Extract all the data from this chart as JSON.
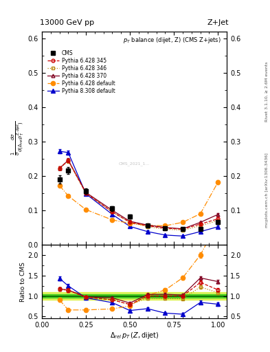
{
  "title_top": "13000 GeV pp",
  "title_right": "Z+Jet",
  "subtitle": "$p_T$ balance (dijet, Z) (CMS Z+jets)",
  "ylabel_main": "$\\frac{1}{\\sigma}\\frac{d\\sigma}{d(\\Delta_{rel}\\,p_T^{Z,dijet})}$",
  "ylabel_ratio": "Ratio to CMS",
  "xlabel": "$\\Delta_{rel}\\,p_T\\,(Z,\\mathrm{dijet})$",
  "right_label_top": "Rivet 3.1.10, ≥ 2.6M events",
  "right_label_bot": "mcplots.cern.ch [arXiv:1306.3436]",
  "cms_x": [
    0.1,
    0.15,
    0.25,
    0.4,
    0.5,
    0.6,
    0.7,
    0.8,
    0.9,
    1.0
  ],
  "cms_y": [
    0.19,
    0.215,
    0.155,
    0.105,
    0.082,
    0.055,
    0.048,
    0.045,
    0.045,
    0.065
  ],
  "cms_yerr": [
    0.012,
    0.01,
    0.008,
    0.007,
    0.006,
    0.004,
    0.004,
    0.003,
    0.003,
    0.005
  ],
  "p345_x": [
    0.1,
    0.15,
    0.25,
    0.4,
    0.5,
    0.6,
    0.7,
    0.8,
    0.9,
    1.0
  ],
  "p345_y": [
    0.222,
    0.245,
    0.15,
    0.095,
    0.065,
    0.055,
    0.048,
    0.045,
    0.06,
    0.075
  ],
  "p345_yerr": [
    0.005,
    0.005,
    0.004,
    0.003,
    0.003,
    0.003,
    0.002,
    0.002,
    0.003,
    0.004
  ],
  "p346_x": [
    0.1,
    0.15,
    0.25,
    0.4,
    0.5,
    0.6,
    0.7,
    0.8,
    0.9,
    1.0
  ],
  "p346_y": [
    0.222,
    0.243,
    0.15,
    0.095,
    0.065,
    0.052,
    0.045,
    0.042,
    0.055,
    0.07
  ],
  "p346_yerr": [
    0.005,
    0.005,
    0.004,
    0.003,
    0.003,
    0.003,
    0.002,
    0.002,
    0.003,
    0.004
  ],
  "p370_x": [
    0.1,
    0.15,
    0.25,
    0.4,
    0.5,
    0.6,
    0.7,
    0.8,
    0.9,
    1.0
  ],
  "p370_y": [
    0.222,
    0.246,
    0.152,
    0.1,
    0.068,
    0.057,
    0.05,
    0.046,
    0.065,
    0.088
  ],
  "p370_yerr": [
    0.005,
    0.005,
    0.004,
    0.003,
    0.003,
    0.003,
    0.002,
    0.002,
    0.003,
    0.004
  ],
  "pdef_x": [
    0.1,
    0.15,
    0.25,
    0.4,
    0.5,
    0.6,
    0.7,
    0.8,
    0.9,
    1.0
  ],
  "pdef_y": [
    0.172,
    0.142,
    0.102,
    0.072,
    0.062,
    0.056,
    0.055,
    0.065,
    0.09,
    0.182
  ],
  "pdef_yerr": [
    0.005,
    0.004,
    0.004,
    0.003,
    0.003,
    0.003,
    0.003,
    0.003,
    0.004,
    0.006
  ],
  "p8_x": [
    0.1,
    0.15,
    0.25,
    0.4,
    0.5,
    0.6,
    0.7,
    0.8,
    0.9,
    1.0
  ],
  "p8_y": [
    0.272,
    0.268,
    0.148,
    0.088,
    0.053,
    0.038,
    0.028,
    0.025,
    0.038,
    0.052
  ],
  "p8_yerr": [
    0.006,
    0.006,
    0.004,
    0.003,
    0.003,
    0.003,
    0.002,
    0.002,
    0.003,
    0.004
  ],
  "ratio_x": [
    0.1,
    0.15,
    0.25,
    0.4,
    0.5,
    0.6,
    0.7,
    0.8,
    0.9,
    1.0
  ],
  "ratio_p345_y": [
    1.17,
    1.14,
    0.97,
    0.905,
    0.793,
    1.0,
    1.0,
    1.0,
    1.33,
    1.15
  ],
  "ratio_p345_e": [
    0.04,
    0.04,
    0.03,
    0.03,
    0.03,
    0.03,
    0.03,
    0.03,
    0.04,
    0.04
  ],
  "ratio_p346_y": [
    1.17,
    1.13,
    0.97,
    0.905,
    0.793,
    0.945,
    0.937,
    0.933,
    1.22,
    1.08
  ],
  "ratio_p346_e": [
    0.04,
    0.04,
    0.03,
    0.03,
    0.03,
    0.03,
    0.03,
    0.03,
    0.04,
    0.04
  ],
  "ratio_p370_y": [
    1.17,
    1.145,
    0.98,
    0.952,
    0.829,
    1.036,
    1.042,
    1.022,
    1.44,
    1.35
  ],
  "ratio_p370_e": [
    0.04,
    0.04,
    0.03,
    0.03,
    0.03,
    0.03,
    0.03,
    0.03,
    0.04,
    0.04
  ],
  "ratio_pdef_y": [
    0.905,
    0.66,
    0.66,
    0.686,
    0.756,
    1.018,
    1.146,
    1.444,
    2.0,
    2.8
  ],
  "ratio_pdef_e": [
    0.05,
    0.04,
    0.04,
    0.03,
    0.03,
    0.04,
    0.04,
    0.05,
    0.07,
    0.09
  ],
  "ratio_p8_y": [
    1.43,
    1.245,
    0.955,
    0.838,
    0.646,
    0.691,
    0.583,
    0.556,
    0.844,
    0.8
  ],
  "ratio_p8_e": [
    0.05,
    0.05,
    0.04,
    0.03,
    0.03,
    0.03,
    0.03,
    0.03,
    0.04,
    0.04
  ],
  "cms_color": "#000000",
  "p345_color": "#cc0000",
  "p346_color": "#b8860b",
  "p370_color": "#800020",
  "pdef_color": "#ff8c00",
  "p8_color": "#0000cc",
  "band_inner_color": "#00bb00",
  "band_outer_color": "#ccee00",
  "ylim_main": [
    0.0,
    0.62
  ],
  "ylim_ratio": [
    0.45,
    2.25
  ],
  "yticks_main": [
    0.0,
    0.1,
    0.2,
    0.3,
    0.4,
    0.5,
    0.6
  ],
  "yticks_ratio": [
    0.5,
    1.0,
    1.5,
    2.0
  ],
  "xlim": [
    0.0,
    1.05
  ],
  "xticks": [
    0.0,
    0.25,
    0.5,
    0.75,
    1.0
  ]
}
